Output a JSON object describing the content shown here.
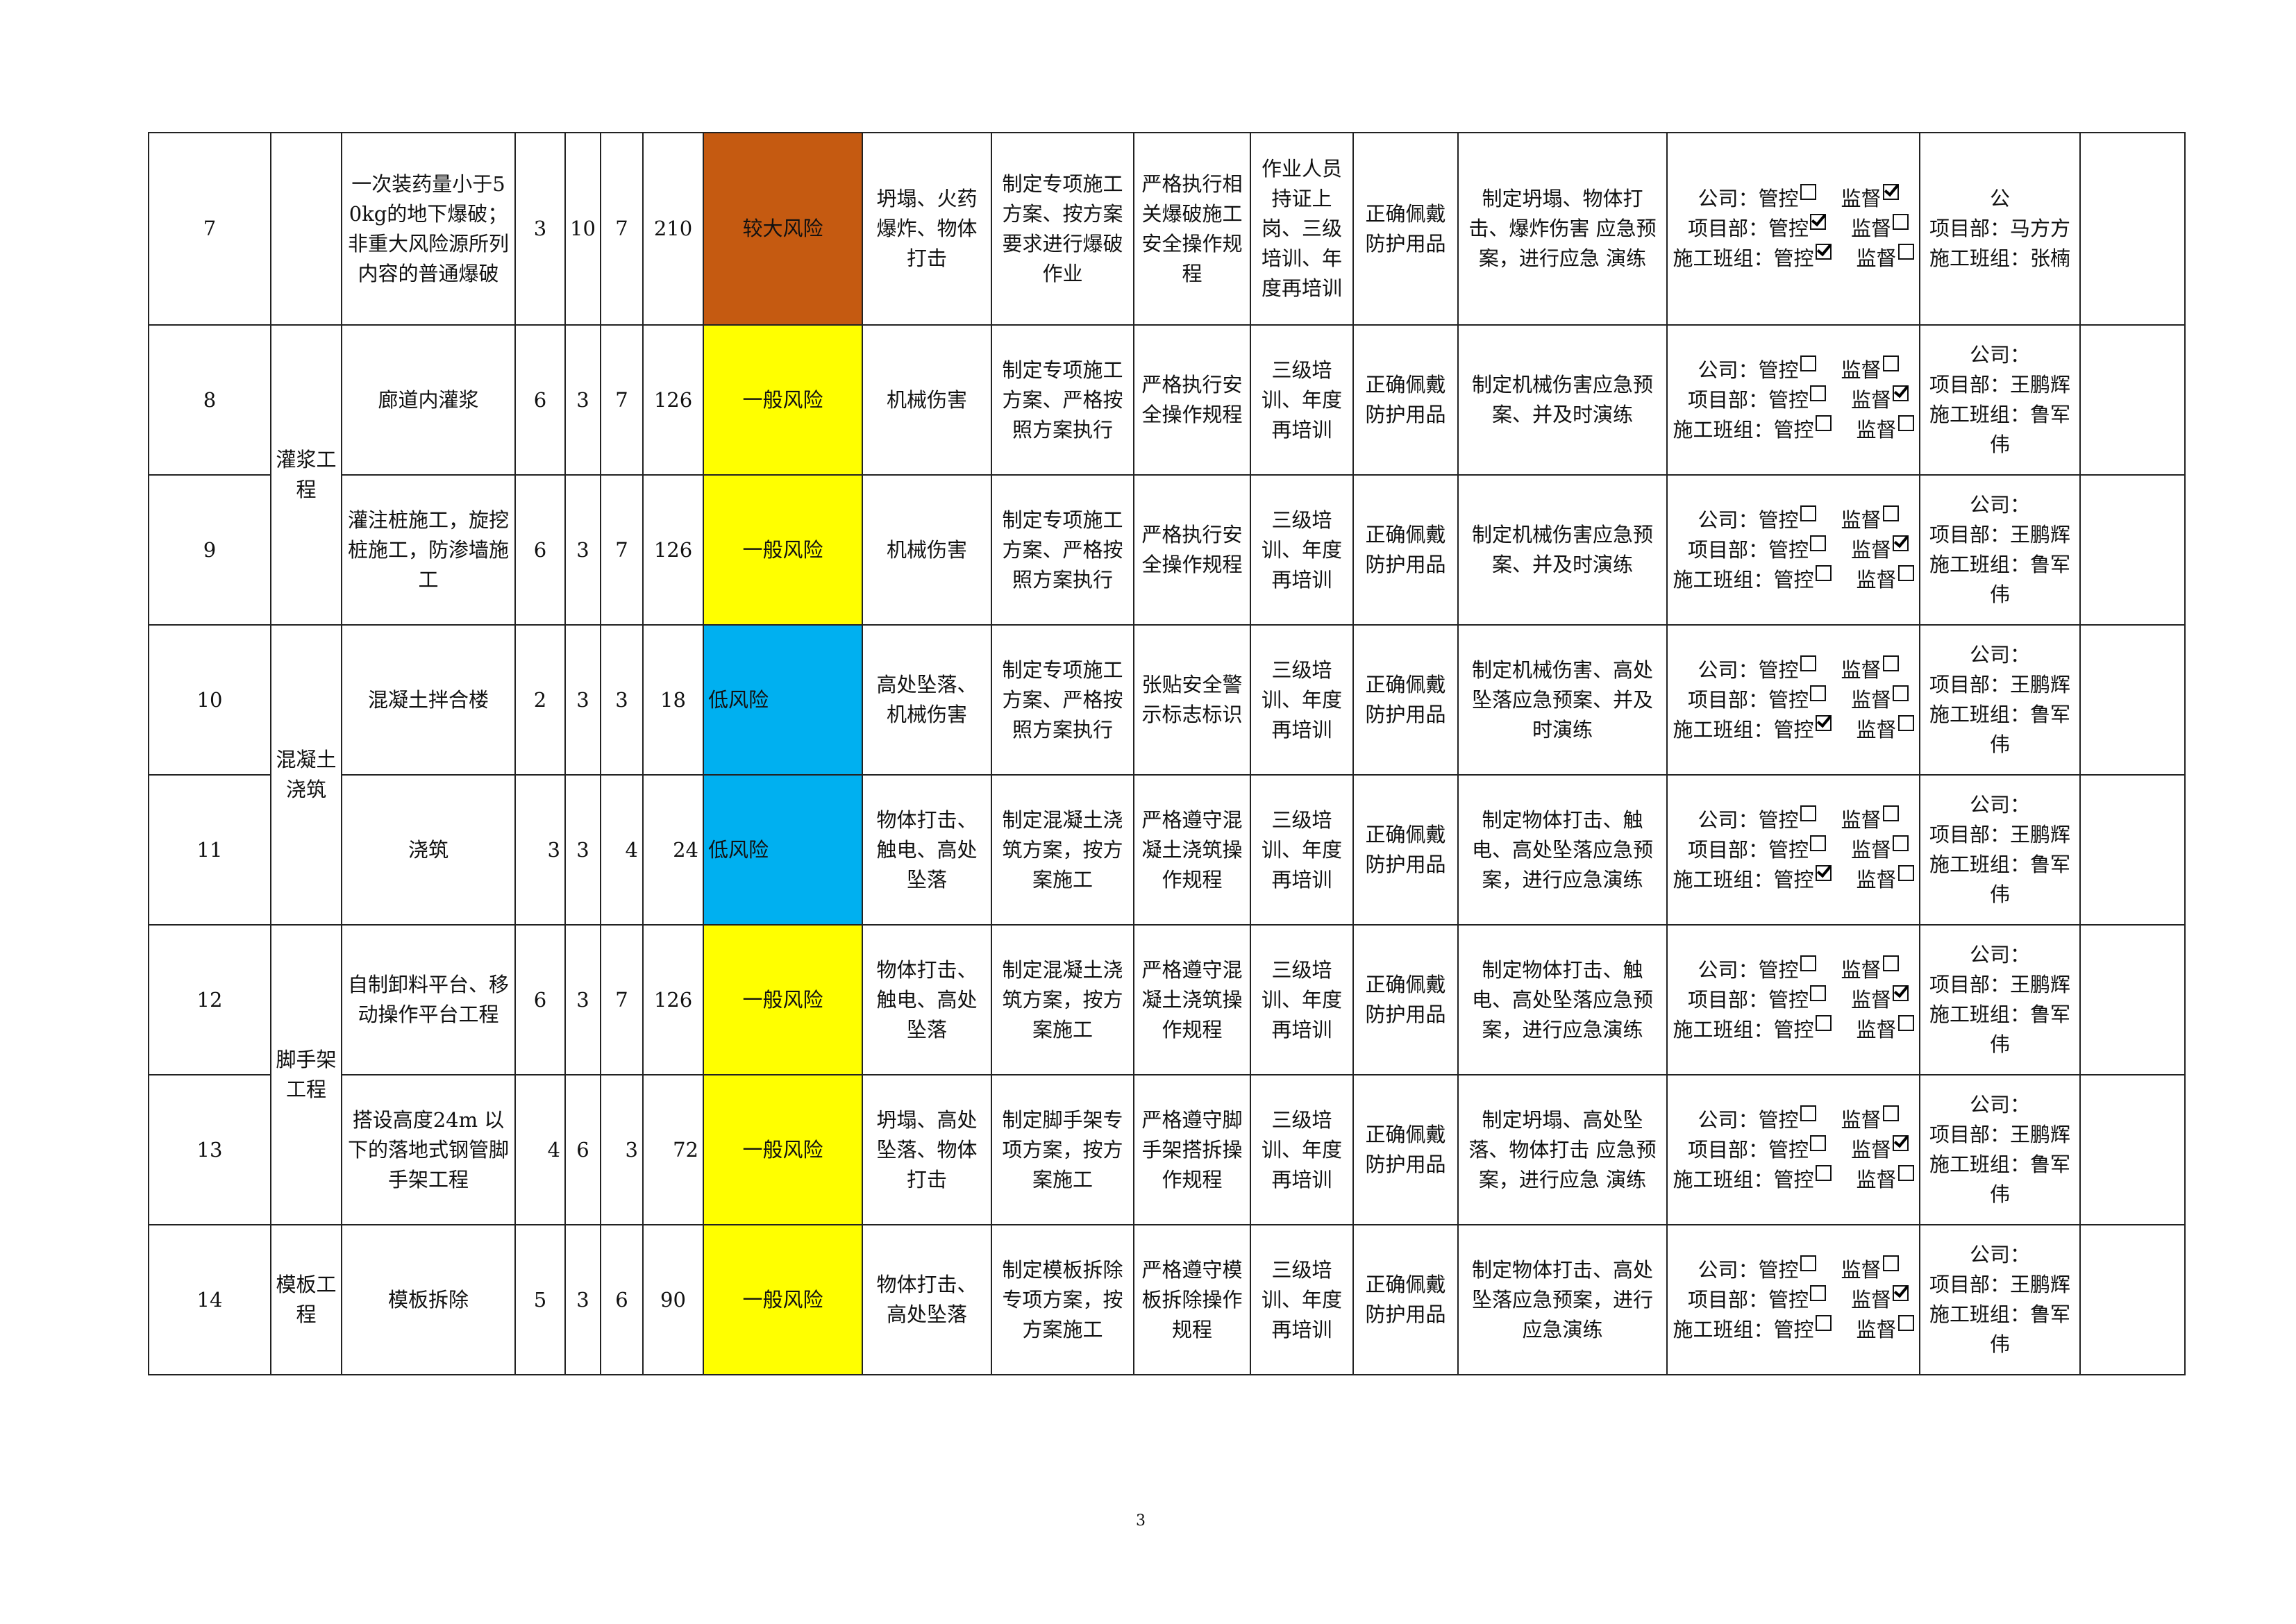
{
  "colors": {
    "较大风险": "#C55A11",
    "一般风险": "#FFFF00",
    "低风险": "#00B0F0"
  },
  "labels": {
    "company": "公司：",
    "project": "项目部：",
    "team": "施工班组：",
    "control": "管控",
    "supervise": "监督"
  },
  "groups": [
    {
      "category": "",
      "rows": [
        {
          "no": "7",
          "activity": "一次装药量小于50kg的地下爆破；非重大风险源所列内容的普通爆破",
          "l": "3",
          "e": "10",
          "c": "7",
          "d": "210",
          "level": "较大风险",
          "hazard": "坍塌、火药爆炸、物体打击",
          "engineering": "制定专项施工方案、按方案要求进行爆破作业",
          "management": "严格执行相关爆破施工安全操作规程",
          "training": "作业人员持证上岗、三级培训、年度再培训",
          "ppe": "正确佩戴防护用品",
          "emergency": "制定坍塌、物体打击、爆炸伤害 应急预案，进行应急 演练",
          "checks": {
            "company": [
              false,
              true
            ],
            "project": [
              true,
              false
            ],
            "team": [
              true,
              false
            ]
          },
          "responsible": {
            "company": "公",
            "project": "项目部：马方方",
            "team": "施工班组：张楠"
          }
        }
      ]
    },
    {
      "category": "灌浆工程",
      "rows": [
        {
          "no": "8",
          "activity": "廊道内灌浆",
          "l": "6",
          "e": "3",
          "c": "7",
          "d": "126",
          "level": "一般风险",
          "hazard": "机械伤害",
          "engineering": "制定专项施工方案、严格按照方案执行",
          "management": "严格执行安全操作规程",
          "training": "三级培训、年度再培训",
          "ppe": "正确佩戴防护用品",
          "emergency": "制定机械伤害应急预案、并及时演练",
          "checks": {
            "company": [
              false,
              false
            ],
            "project": [
              false,
              true
            ],
            "team": [
              false,
              false
            ]
          },
          "responsible": {
            "company": "公司：",
            "project": "项目部：王鹏辉",
            "team": "施工班组：鲁军伟"
          }
        },
        {
          "no": "9",
          "activity": "灌注桩施工，旋挖桩施工，防渗墙施工",
          "l": "6",
          "e": "3",
          "c": "7",
          "d": "126",
          "level": "一般风险",
          "hazard": "机械伤害",
          "engineering": "制定专项施工方案、严格按照方案执行",
          "management": "严格执行安全操作规程",
          "training": "三级培训、年度再培训",
          "ppe": "正确佩戴防护用品",
          "emergency": "制定机械伤害应急预案、并及时演练",
          "checks": {
            "company": [
              false,
              false
            ],
            "project": [
              false,
              true
            ],
            "team": [
              false,
              false
            ]
          },
          "responsible": {
            "company": "公司：",
            "project": "项目部：王鹏辉",
            "team": "施工班组：鲁军伟"
          }
        }
      ]
    },
    {
      "category": "混凝土浇筑",
      "rows": [
        {
          "no": "10",
          "activity": "混凝土拌合楼",
          "l": "2",
          "e": "3",
          "c": "3",
          "d": "18",
          "level": "低风险",
          "hazard": "高处坠落、机械伤害",
          "engineering": "制定专项施工方案、严格按照方案执行",
          "management": "张贴安全警示标志标识",
          "training": "三级培训、年度再培训",
          "ppe": "正确佩戴防护用品",
          "emergency": "制定机械伤害、高处坠落应急预案、并及时演练",
          "checks": {
            "company": [
              false,
              false
            ],
            "project": [
              false,
              false
            ],
            "team": [
              true,
              false
            ]
          },
          "responsible": {
            "company": "公司：",
            "project": "项目部：王鹏辉",
            "team": "施工班组：鲁军伟"
          }
        },
        {
          "no": "11",
          "activity": "浇筑",
          "l": "3",
          "e": "3",
          "c": "4",
          "d": "24",
          "level": "低风险",
          "hazard": "物体打击、触电、高处坠落",
          "engineering": "制定混凝土浇筑方案，按方案施工",
          "management": "严格遵守混凝土浇筑操作规程",
          "training": "三级培训、年度再培训",
          "ppe": "正确佩戴防护用品",
          "emergency": "制定物体打击、触电、高处坠落应急预案，进行应急演练",
          "checks": {
            "company": [
              false,
              false
            ],
            "project": [
              false,
              false
            ],
            "team": [
              true,
              false
            ]
          },
          "responsible": {
            "company": "公司：",
            "project": "项目部：王鹏辉",
            "team": "施工班组：鲁军伟"
          }
        }
      ]
    },
    {
      "category": "脚手架工程",
      "rows": [
        {
          "no": "12",
          "activity": "自制卸料平台、移动操作平台工程",
          "l": "6",
          "e": "3",
          "c": "7",
          "d": "126",
          "level": "一般风险",
          "hazard": "物体打击、触电、高处坠落",
          "engineering": "制定混凝土浇筑方案，按方案施工",
          "management": "严格遵守混凝土浇筑操作规程",
          "training": "三级培训、年度再培训",
          "ppe": "正确佩戴防护用品",
          "emergency": "制定物体打击、触电、高处坠落应急预案，进行应急演练",
          "checks": {
            "company": [
              false,
              false
            ],
            "project": [
              false,
              true
            ],
            "team": [
              false,
              false
            ]
          },
          "responsible": {
            "company": "公司：",
            "project": "项目部：王鹏辉",
            "team": "施工班组：鲁军伟"
          }
        },
        {
          "no": "13",
          "activity": "搭设高度24m 以下的落地式钢管脚手架工程",
          "l": "4",
          "e": "6",
          "c": "3",
          "d": "72",
          "level": "一般风险",
          "hazard": "坍塌、高处坠落、物体打击",
          "engineering": "制定脚手架专项方案，按方案施工",
          "management": "严格遵守脚手架搭拆操作规程",
          "training": "三级培训、年度再培训",
          "ppe": "正确佩戴防护用品",
          "emergency": "制定坍塌、高处坠落、物体打击 应急预案，进行应急 演练",
          "checks": {
            "company": [
              false,
              false
            ],
            "project": [
              false,
              true
            ],
            "team": [
              false,
              false
            ]
          },
          "responsible": {
            "company": "公司：",
            "project": "项目部：王鹏辉",
            "team": "施工班组：鲁军伟"
          }
        }
      ]
    },
    {
      "category": "模板工程",
      "rows": [
        {
          "no": "14",
          "activity": "模板拆除",
          "l": "5",
          "e": "3",
          "c": "6",
          "d": "90",
          "level": "一般风险",
          "hazard": "物体打击、高处坠落",
          "engineering": "制定模板拆除专项方案，按方案施工",
          "management": "严格遵守模板拆除操作规程",
          "training": "三级培训、年度再培训",
          "ppe": "正确佩戴防护用品",
          "emergency": "制定物体打击、高处坠落应急预案，进行应急演练",
          "checks": {
            "company": [
              false,
              false
            ],
            "project": [
              false,
              true
            ],
            "team": [
              false,
              false
            ]
          },
          "responsible": {
            "company": "公司：",
            "project": "项目部：王鹏辉",
            "team": "施工班组：鲁军伟"
          }
        }
      ]
    }
  ],
  "page_number": "3"
}
